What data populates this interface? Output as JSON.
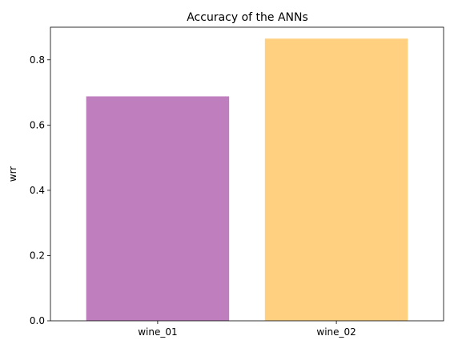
{
  "chart_data": {
    "type": "bar",
    "title": "Accuracy of the ANNs",
    "xlabel": "",
    "ylabel": "wrr",
    "categories": [
      "wine_01",
      "wine_02"
    ],
    "values": [
      0.688,
      0.865
    ],
    "colors": [
      "#bf7fbf",
      "#ffd080"
    ],
    "ylim": [
      0,
      0.9
    ],
    "yticks": [
      0.0,
      0.2,
      0.4,
      0.6,
      0.8
    ],
    "ytick_labels": [
      "0.0",
      "0.2",
      "0.4",
      "0.6",
      "0.8"
    ],
    "grid": false,
    "legend": "none"
  }
}
